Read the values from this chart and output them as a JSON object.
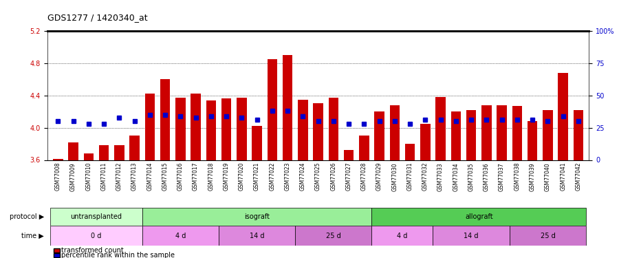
{
  "title": "GDS1277 / 1420340_at",
  "samples": [
    "GSM77008",
    "GSM77009",
    "GSM77010",
    "GSM77011",
    "GSM77012",
    "GSM77013",
    "GSM77014",
    "GSM77015",
    "GSM77016",
    "GSM77017",
    "GSM77018",
    "GSM77019",
    "GSM77020",
    "GSM77021",
    "GSM77022",
    "GSM77023",
    "GSM77024",
    "GSM77025",
    "GSM77026",
    "GSM77027",
    "GSM77028",
    "GSM77029",
    "GSM77030",
    "GSM77031",
    "GSM77032",
    "GSM77033",
    "GSM77034",
    "GSM77035",
    "GSM77036",
    "GSM77037",
    "GSM77038",
    "GSM77039",
    "GSM77040",
    "GSM77041",
    "GSM77042"
  ],
  "bar_values": [
    3.61,
    3.82,
    3.68,
    3.78,
    3.78,
    3.9,
    4.42,
    4.6,
    4.37,
    4.42,
    4.34,
    4.36,
    4.37,
    4.02,
    4.85,
    4.9,
    4.35,
    4.3,
    4.37,
    3.72,
    3.9,
    4.2,
    4.28,
    3.8,
    4.05,
    4.38,
    4.2,
    4.22,
    4.28,
    4.28,
    4.27,
    4.08,
    4.22,
    4.68,
    4.22
  ],
  "percentile_values": [
    30,
    30,
    28,
    28,
    33,
    30,
    35,
    35,
    34,
    33,
    34,
    34,
    33,
    31,
    38,
    38,
    34,
    30,
    30,
    28,
    28,
    30,
    30,
    28,
    31,
    31,
    30,
    31,
    31,
    31,
    31,
    31,
    30,
    34,
    30
  ],
  "ymin": 3.6,
  "ymax": 5.2,
  "yticks": [
    3.6,
    4.0,
    4.4,
    4.8,
    5.2
  ],
  "y2min": 0,
  "y2max": 100,
  "y2ticks": [
    0,
    25,
    50,
    75,
    100
  ],
  "y2labels": [
    "0",
    "25",
    "50",
    "75",
    "100%"
  ],
  "bar_color": "#cc0000",
  "dot_color": "#0000cc",
  "xtick_bg": "#d8d8d8",
  "protocol_groups": [
    {
      "label": "untransplanted",
      "start": 0,
      "end": 5,
      "color": "#ccffcc"
    },
    {
      "label": "isograft",
      "start": 6,
      "end": 20,
      "color": "#99ee99"
    },
    {
      "label": "allograft",
      "start": 21,
      "end": 34,
      "color": "#55cc55"
    }
  ],
  "time_groups": [
    {
      "label": "0 d",
      "start": 0,
      "end": 5,
      "color": "#ffccff"
    },
    {
      "label": "4 d",
      "start": 6,
      "end": 10,
      "color": "#ee99ee"
    },
    {
      "label": "14 d",
      "start": 11,
      "end": 15,
      "color": "#dd88dd"
    },
    {
      "label": "25 d",
      "start": 16,
      "end": 20,
      "color": "#cc77cc"
    },
    {
      "label": "4 d",
      "start": 21,
      "end": 24,
      "color": "#ee99ee"
    },
    {
      "label": "14 d",
      "start": 25,
      "end": 29,
      "color": "#dd88dd"
    },
    {
      "label": "25 d",
      "start": 30,
      "end": 34,
      "color": "#cc77cc"
    }
  ],
  "legend_label_red": "transformed count",
  "legend_label_blue": "percentile rank within the sample"
}
